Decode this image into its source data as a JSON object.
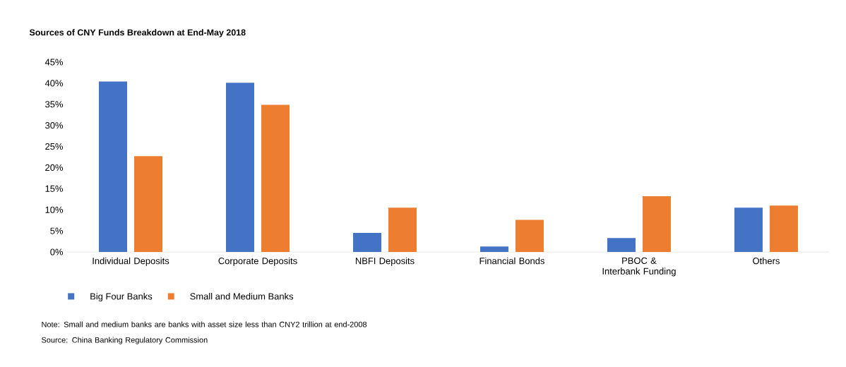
{
  "chart_data": {
    "type": "bar",
    "title": "Sources of CNY Funds Breakdown at End-May 2018",
    "categories": [
      "Individual Deposits",
      "Corporate Deposits",
      "NBFI Deposits",
      "Financial Bonds",
      "PBOC & Interbank Funding",
      "Others"
    ],
    "series": [
      {
        "name": "Big Four Banks",
        "color": "#4472c4",
        "values": [
          40.4,
          40.1,
          4.5,
          1.3,
          3.3,
          10.5
        ]
      },
      {
        "name": "Small and Medium Banks",
        "color": "#ed7d31",
        "values": [
          22.7,
          34.9,
          10.5,
          7.6,
          13.2,
          11.0
        ]
      }
    ],
    "ylim": [
      0,
      45
    ],
    "yticks": [
      {
        "value": 0,
        "label": "0%"
      },
      {
        "value": 5,
        "label": "5%"
      },
      {
        "value": 10,
        "label": "10%"
      },
      {
        "value": 15,
        "label": "15%"
      },
      {
        "value": 20,
        "label": "20%"
      },
      {
        "value": 25,
        "label": "25%"
      },
      {
        "value": 30,
        "label": "30%"
      },
      {
        "value": 35,
        "label": "35%"
      },
      {
        "value": 40,
        "label": "40%"
      },
      {
        "value": 45,
        "label": "45%"
      }
    ],
    "grid": false,
    "legend": "bottom left",
    "annotations": [
      "Note: Small and medium banks are banks with asset size less than CNY2 trillion at end-2008",
      "Source: China Banking Regulatory Commission"
    ]
  }
}
